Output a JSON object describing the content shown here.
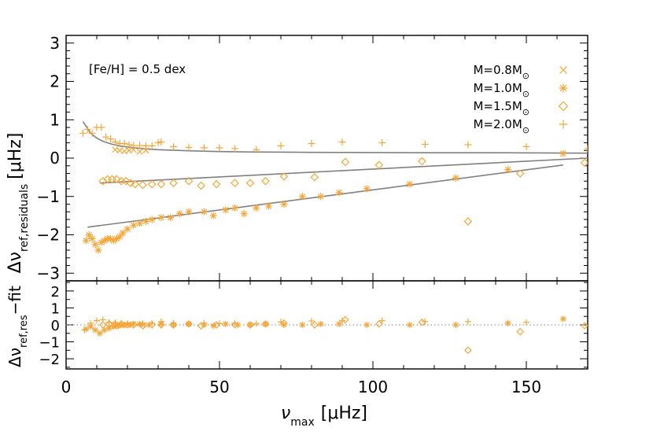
{
  "colors": {
    "points": "#f5a638",
    "fit": "#808080",
    "zero_line": "#808080",
    "axes": "#000000"
  },
  "chart_data": [
    {
      "type": "scatter",
      "panel": "main",
      "annotation": "[Fe/H] = 0.5 dex",
      "ylabel": {
        "symbol": "Δν",
        "sub": "ref,residuals",
        "unit": "[μHz]"
      },
      "xlim": [
        0,
        170
      ],
      "ylim": [
        -3.2,
        3.2
      ],
      "xticks": [
        0,
        50,
        100,
        150
      ],
      "yticks": [
        -3,
        -2,
        -1,
        0,
        1,
        2,
        3
      ],
      "ytick_labels": [
        "−3",
        "−2",
        "−1",
        "0",
        "1",
        "2",
        "3"
      ],
      "legend": {
        "placement": "top-right",
        "entries": [
          {
            "base": "M=0.8M",
            "marker": "x"
          },
          {
            "base": "M=1.0M",
            "marker": "asterisk"
          },
          {
            "base": "M=1.5M",
            "marker": "diamond"
          },
          {
            "base": "M=2.0M",
            "marker": "plus"
          }
        ],
        "sun_symbol": "⊙"
      },
      "series": [
        {
          "marker": "plus",
          "x": [
            5.5,
            7,
            8.5,
            10,
            11.5,
            13,
            14.5,
            16,
            17.5,
            19,
            20.5,
            22,
            24,
            26,
            28,
            30,
            31,
            35,
            40,
            45,
            50,
            55,
            62,
            70,
            80,
            90,
            103,
            117,
            131,
            150,
            170
          ],
          "y": [
            0.65,
            0.75,
            0.65,
            0.8,
            0.8,
            0.55,
            0.5,
            0.42,
            0.38,
            0.38,
            0.35,
            0.33,
            0.33,
            0.32,
            0.32,
            0.4,
            0.42,
            0.3,
            0.28,
            0.27,
            0.27,
            0.25,
            0.22,
            0.32,
            0.38,
            0.42,
            0.4,
            0.36,
            0.35,
            0.3,
            0.25
          ]
        },
        {
          "marker": "x",
          "x": [
            16,
            17.5,
            19,
            20.5,
            22,
            24,
            26
          ],
          "y": [
            0.22,
            0.2,
            0.18,
            0.2,
            0.22,
            0.17,
            0.2
          ]
        },
        {
          "marker": "diamond",
          "x": [
            12,
            13.5,
            15,
            16.5,
            18,
            19.5,
            21,
            22.5,
            25,
            28,
            31,
            35,
            40,
            44,
            49,
            55,
            60,
            65,
            71,
            81,
            91,
            102,
            116,
            131,
            148,
            169
          ],
          "y": [
            -0.6,
            -0.55,
            -0.55,
            -0.55,
            -0.6,
            -0.6,
            -0.65,
            -0.68,
            -0.7,
            -0.68,
            -0.68,
            -0.65,
            -0.6,
            -0.72,
            -0.68,
            -0.65,
            -0.65,
            -0.6,
            -0.48,
            -0.5,
            -0.1,
            -0.18,
            -0.08,
            -1.65,
            -0.4,
            -0.12
          ]
        },
        {
          "marker": "asterisk",
          "x": [
            6.5,
            7.5,
            8.5,
            9.5,
            10.5,
            11.5,
            12.5,
            13.5,
            14.5,
            15.5,
            16.5,
            17.5,
            18.5,
            20,
            22,
            24,
            26,
            28,
            31,
            34,
            37,
            40,
            45,
            48,
            52,
            55,
            58,
            62,
            66,
            71,
            77,
            83,
            89,
            98,
            112,
            127,
            144,
            162
          ],
          "y": [
            -2.15,
            -2.0,
            -2.1,
            -2.25,
            -2.4,
            -2.2,
            -2.15,
            -2.1,
            -2.1,
            -2.15,
            -2.1,
            -2.05,
            -1.95,
            -1.85,
            -1.75,
            -1.7,
            -1.65,
            -1.6,
            -1.55,
            -1.55,
            -1.45,
            -1.4,
            -1.4,
            -1.5,
            -1.35,
            -1.3,
            -1.45,
            -1.3,
            -1.25,
            -1.2,
            -1.0,
            -1.0,
            -0.9,
            -0.8,
            -0.68,
            -0.52,
            -0.3,
            0.12
          ]
        }
      ],
      "fits": [
        {
          "x": [
            5.5,
            8,
            10,
            12,
            15,
            18,
            22,
            26,
            30,
            40,
            50,
            60,
            80,
            100,
            120,
            140,
            170
          ],
          "y": [
            0.95,
            0.65,
            0.52,
            0.44,
            0.36,
            0.31,
            0.27,
            0.24,
            0.22,
            0.19,
            0.17,
            0.16,
            0.15,
            0.145,
            0.14,
            0.14,
            0.13
          ]
        },
        {
          "x": [
            11,
            170
          ],
          "y": [
            -0.65,
            0.0
          ]
        },
        {
          "x": [
            7,
            162
          ],
          "y": [
            -1.8,
            -0.18
          ]
        }
      ]
    },
    {
      "type": "scatter",
      "panel": "residual",
      "xlabel": {
        "symbol": "ν",
        "sub": "max",
        "unit": "[μHz]"
      },
      "ylabel": {
        "symbol": "Δν",
        "sub": "ref,res",
        "suffix": "−fit"
      },
      "xlim": [
        0,
        170
      ],
      "ylim": [
        -2.6,
        2.6
      ],
      "xticks": [
        0,
        50,
        100,
        150
      ],
      "xtick_labels": [
        "0",
        "50",
        "100",
        "150"
      ],
      "yticks": [
        -2,
        -1,
        0,
        1,
        2
      ],
      "ytick_labels": [
        "−2",
        "−1",
        "0",
        "1",
        "2"
      ],
      "zero_line": "dotted",
      "series": [
        {
          "marker": "plus",
          "x": [
            6,
            8,
            10,
            12,
            14,
            16,
            18,
            20,
            22,
            25,
            28,
            31,
            35,
            40,
            45,
            50,
            55,
            62,
            70,
            80,
            90,
            103,
            117,
            131,
            150
          ],
          "y": [
            -0.3,
            0.1,
            0.25,
            0.3,
            0.15,
            0.12,
            0.1,
            0.08,
            0.06,
            0.08,
            0.1,
            0.2,
            0.1,
            0.08,
            0.1,
            0.08,
            0.1,
            0.07,
            0.17,
            0.23,
            0.25,
            0.25,
            0.2,
            0.2,
            0.15
          ]
        },
        {
          "marker": "x",
          "x": [
            16,
            18,
            20,
            22,
            25
          ],
          "y": [
            -0.1,
            -0.05,
            0.0,
            0.05,
            0.0
          ]
        },
        {
          "marker": "diamond",
          "x": [
            12,
            14,
            16,
            18,
            20,
            22,
            25,
            28,
            31,
            35,
            40,
            44,
            49,
            55,
            60,
            65,
            71,
            81,
            91,
            102,
            116,
            131,
            148,
            169
          ],
          "y": [
            0.0,
            0.05,
            0.05,
            0.05,
            0.0,
            0.0,
            -0.05,
            0.0,
            0.0,
            0.0,
            0.05,
            -0.05,
            0.0,
            0.0,
            0.0,
            0.05,
            0.1,
            0.0,
            0.3,
            0.05,
            0.15,
            -1.5,
            -0.4,
            -0.05
          ]
        },
        {
          "marker": "asterisk",
          "x": [
            6.5,
            8,
            9.5,
            11,
            12.5,
            14,
            15.5,
            17,
            19,
            21,
            24,
            27,
            31,
            35,
            40,
            45,
            48,
            52,
            56,
            60,
            65,
            71,
            77,
            83,
            89,
            98,
            112,
            127,
            144,
            162
          ],
          "y": [
            -0.25,
            -0.1,
            -0.3,
            -0.5,
            -0.3,
            -0.2,
            -0.1,
            -0.05,
            0.0,
            0.0,
            0.05,
            0.0,
            0.05,
            0.0,
            0.05,
            0.0,
            -0.05,
            0.05,
            0.0,
            0.0,
            0.05,
            0.0,
            0.0,
            0.05,
            0.05,
            0.0,
            0.0,
            0.0,
            0.1,
            0.35
          ]
        }
      ]
    }
  ]
}
